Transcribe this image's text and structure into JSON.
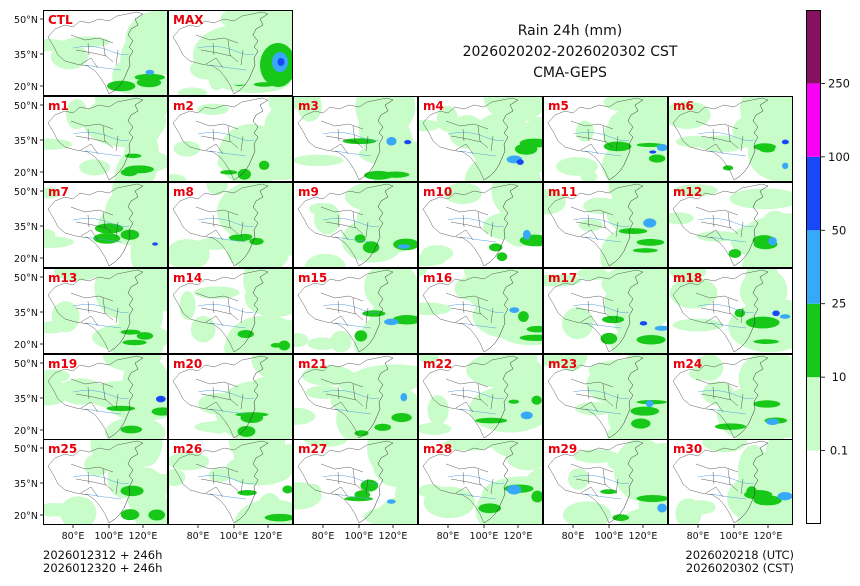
{
  "chart_data": {
    "type": "heatmap",
    "title": "Rain 24h (mm)",
    "subtitle": "2026020202-2026020302 CST",
    "source": "CMA-GEPS",
    "panel_labels": [
      "CTL",
      "MAX",
      "m1",
      "m2",
      "m3",
      "m4",
      "m5",
      "m6",
      "m7",
      "m8",
      "m9",
      "m10",
      "m11",
      "m12",
      "m13",
      "m14",
      "m15",
      "m16",
      "m17",
      "m18",
      "m19",
      "m20",
      "m21",
      "m22",
      "m23",
      "m24",
      "m25",
      "m26",
      "m27",
      "m28",
      "m29",
      "m30"
    ],
    "lat_ticks": [
      "50°N",
      "35°N",
      "20°N"
    ],
    "lon_ticks": [
      "80°E",
      "100°E",
      "120°E"
    ],
    "colorbar": {
      "levels": [
        "0.1",
        "10",
        "25",
        "50",
        "100",
        "250"
      ],
      "colors": [
        "#ffffff",
        "#c8fcc8",
        "#18c818",
        "#38a8f8",
        "#1848f8",
        "#f800f8",
        "#881060"
      ]
    },
    "init_time_1": "2026012312 + 246h",
    "init_time_2": "2026012320 + 246h",
    "valid_time_utc": "2026020218 (UTC)",
    "valid_time_cst": "2026020302 (CST)"
  },
  "colors": {
    "panel_label": "#e8000b",
    "land_outline": "#333333",
    "river": "#5aa0e0"
  }
}
